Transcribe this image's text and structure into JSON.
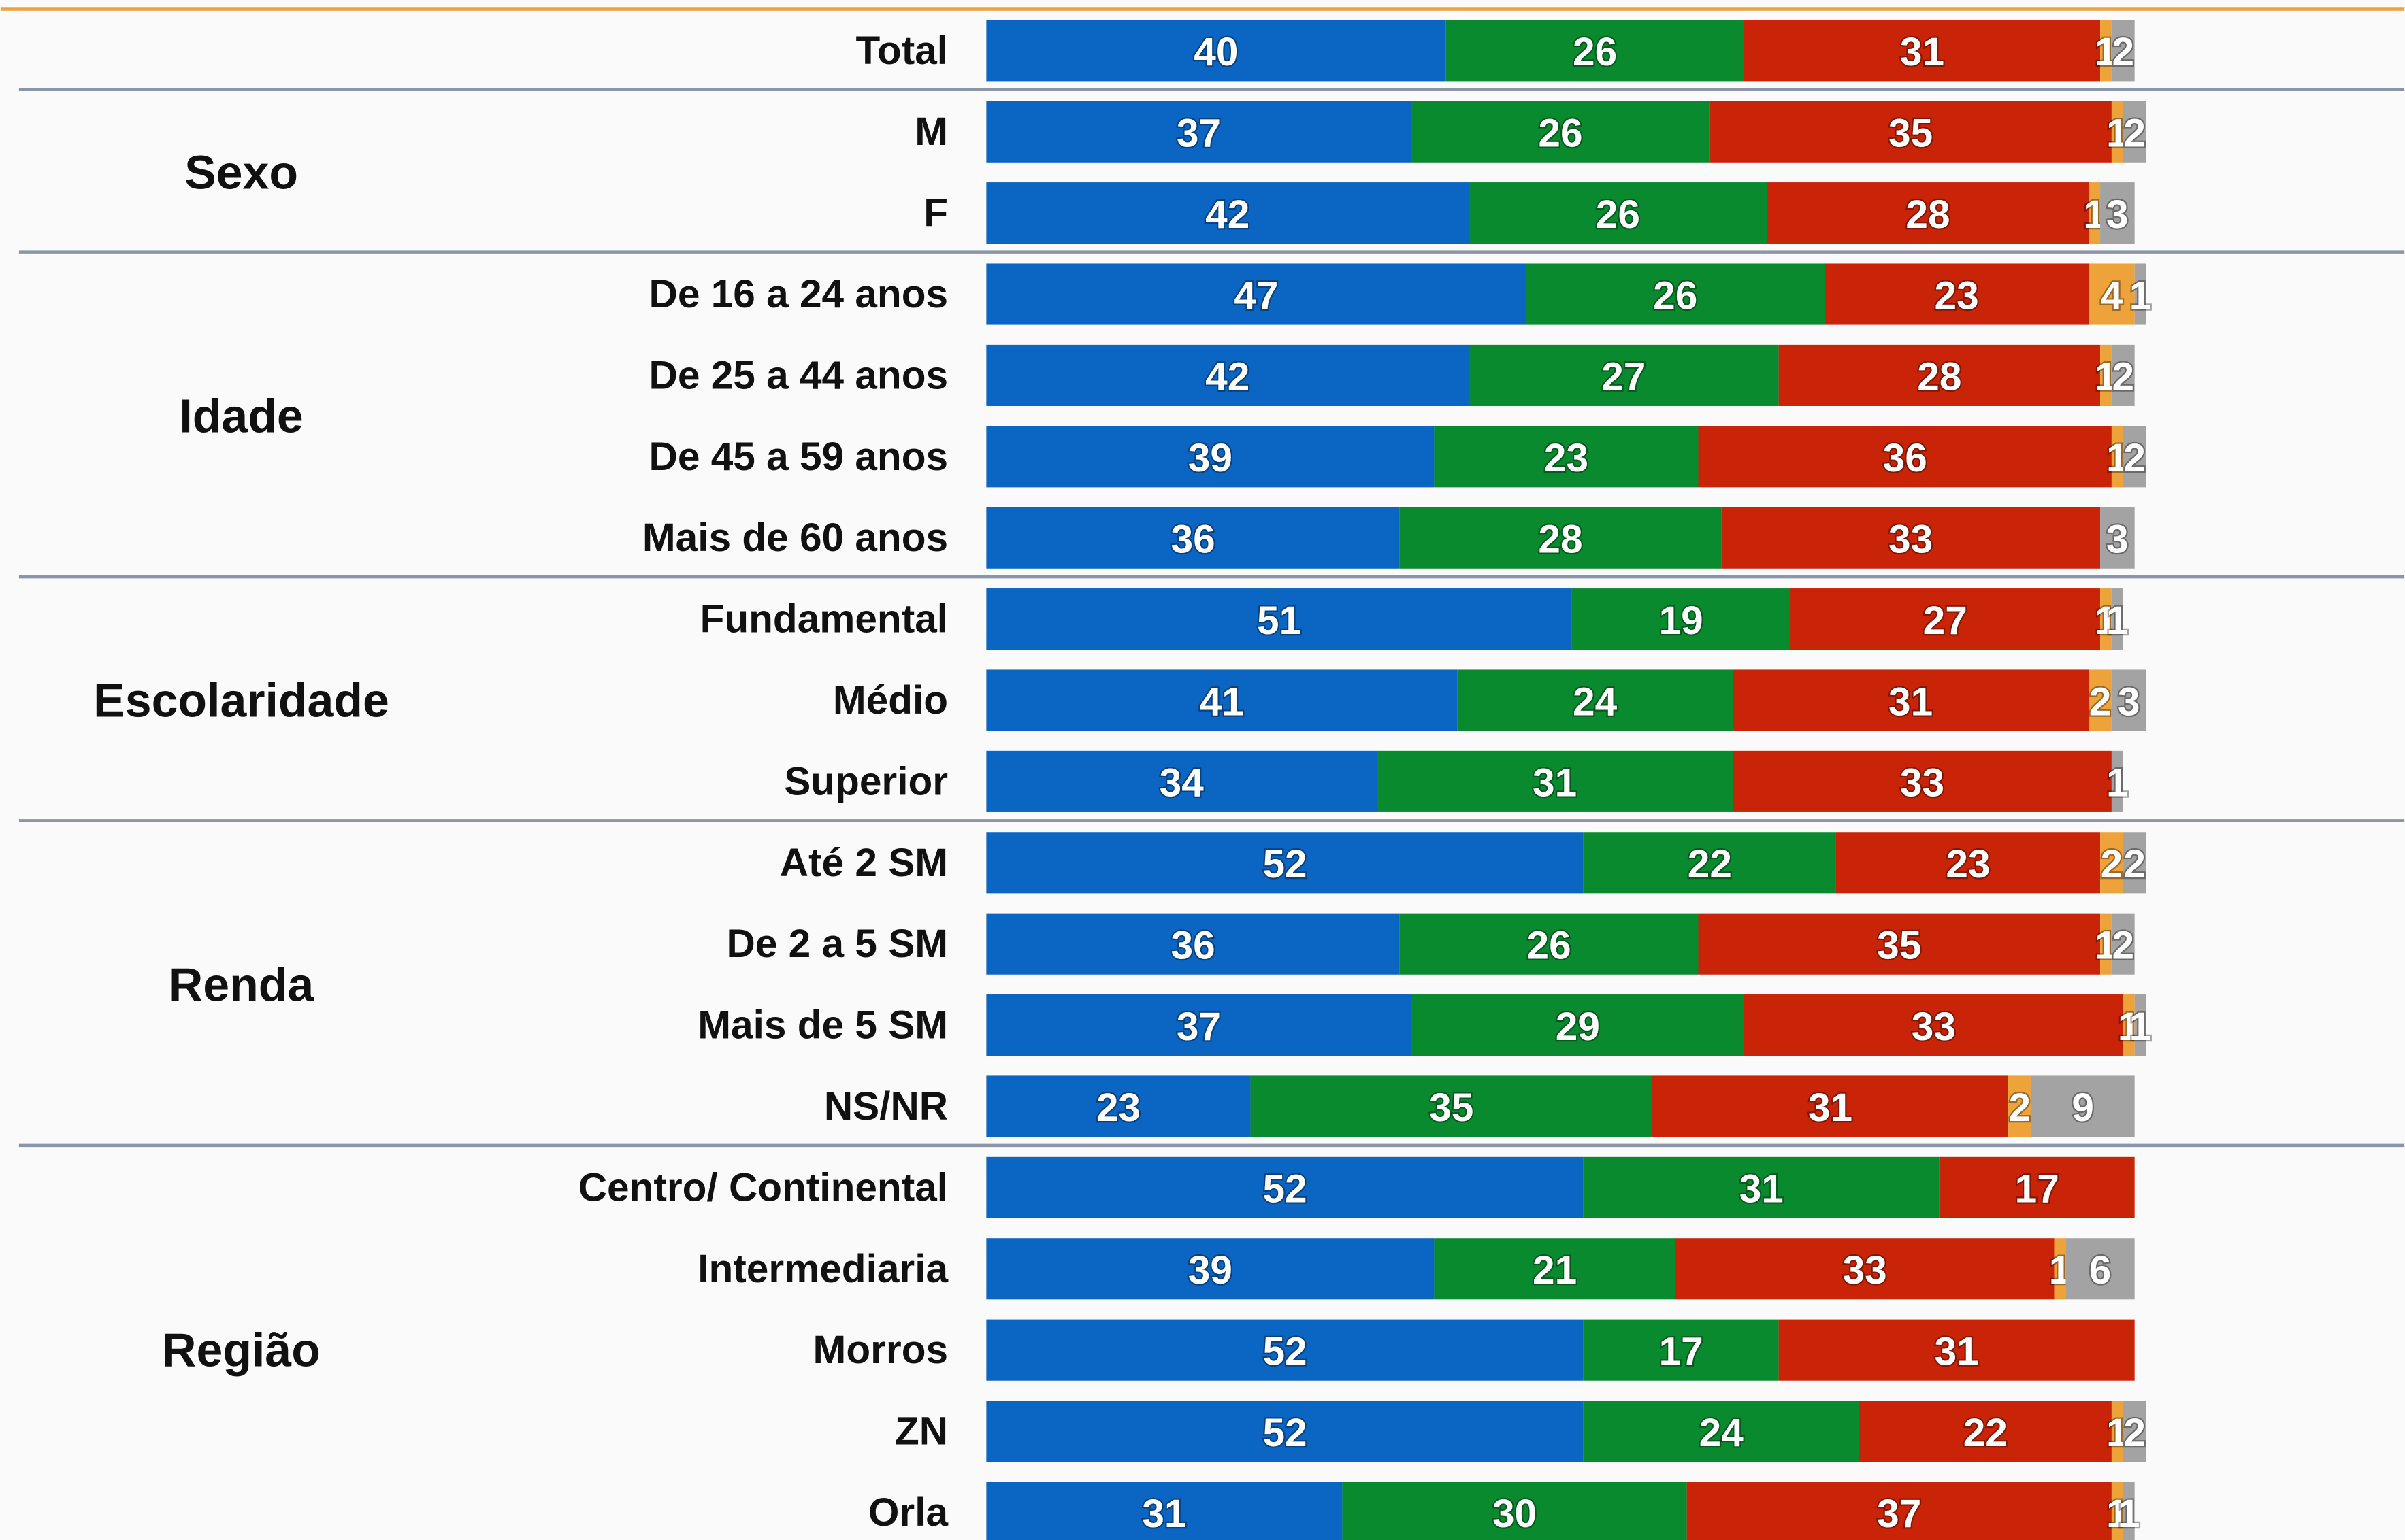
{
  "chart_data": {
    "type": "stacked_bar_horizontal",
    "categories": [
      "Total",
      "M",
      "F",
      "De 16 a 24 anos",
      "De 25 a 44 anos",
      "De 45 a 59 anos",
      "Mais de 60 anos",
      "Fundamental",
      "Médio",
      "Superior",
      "Até 2 SM",
      "De 2 a 5 SM",
      "Mais de 5 SM",
      "NS/NR",
      "Centro/ Continental",
      "Intermediaria",
      "Morros",
      "ZN",
      "Orla"
    ],
    "groups": [
      {
        "label": null,
        "count": 1
      },
      {
        "label": "Sexo",
        "count": 2
      },
      {
        "label": "Idade",
        "count": 4
      },
      {
        "label": "Escolaridade",
        "count": 3
      },
      {
        "label": "Renda",
        "count": 4
      },
      {
        "label": "Região",
        "count": 5
      }
    ],
    "series": [
      {
        "color": "#0b65c2",
        "values": [
          40,
          37,
          42,
          47,
          42,
          39,
          36,
          51,
          41,
          34,
          52,
          36,
          37,
          23,
          52,
          39,
          52,
          52,
          31
        ]
      },
      {
        "color": "#0a8a2f",
        "values": [
          26,
          26,
          26,
          26,
          27,
          23,
          28,
          19,
          24,
          31,
          22,
          26,
          29,
          35,
          31,
          21,
          17,
          24,
          30
        ]
      },
      {
        "color": "#c92408",
        "values": [
          31,
          35,
          28,
          23,
          28,
          36,
          33,
          27,
          31,
          33,
          23,
          35,
          33,
          31,
          17,
          33,
          31,
          22,
          37
        ]
      },
      {
        "color": "#eea23a",
        "values": [
          1,
          1,
          1,
          4,
          1,
          1,
          null,
          1,
          2,
          null,
          2,
          1,
          1,
          2,
          null,
          1,
          null,
          1,
          1
        ]
      },
      {
        "color": "#a3a3a3",
        "values": [
          2,
          2,
          3,
          1,
          2,
          2,
          3,
          1,
          3,
          1,
          2,
          2,
          1,
          9,
          null,
          6,
          null,
          2,
          1
        ]
      }
    ],
    "xlim": [
      0,
      100
    ]
  }
}
